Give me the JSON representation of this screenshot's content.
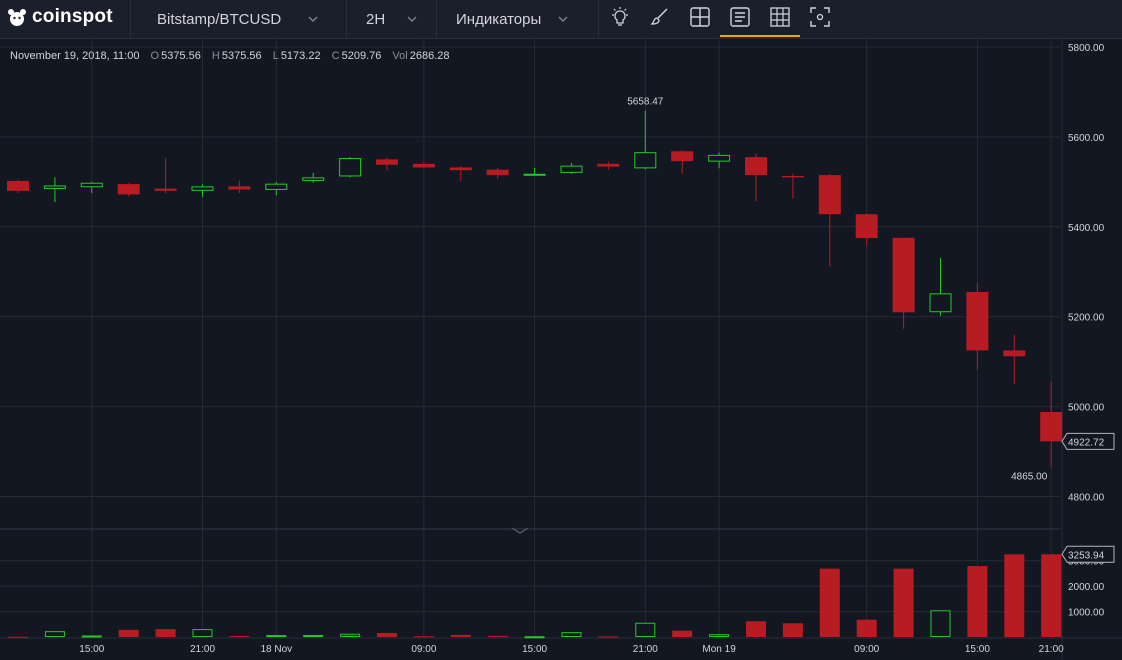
{
  "header": {
    "brand": "coinspot",
    "symbol": "Bitstamp/BTCUSD",
    "interval": "2H",
    "indicators": "Индикаторы",
    "icons": [
      "lightbulb-icon",
      "brush-icon",
      "layout-icon",
      "bars-style-icon",
      "grid-icon",
      "fullscreen-icon"
    ]
  },
  "legend": {
    "date": "November 19, 2018, 11:00",
    "o_label": "O",
    "o": "5375.56",
    "h_label": "H",
    "h": "5375.56",
    "l_label": "L",
    "l": "5173.22",
    "c_label": "C",
    "c": "5209.76",
    "vol_label": "Vol",
    "vol": "2686.28"
  },
  "colors": {
    "background": "#131722",
    "up": "#26c826",
    "down": "#b71c22",
    "grid": "#262a35",
    "accent": "#f7a600"
  },
  "chart_data": {
    "type": "candlestick",
    "price_ticks": [
      "5800.00",
      "5600.00",
      "5400.00",
      "5200.00",
      "5000.00",
      "4800.00"
    ],
    "price_ylim": [
      4730,
      5820
    ],
    "volume_ticks": [
      "3000.00",
      "2000.00",
      "1000.00"
    ],
    "volume_ylim": [
      0,
      3500
    ],
    "time_labels": [
      {
        "label": "15:00",
        "index": 2
      },
      {
        "label": "21:00",
        "index": 5
      },
      {
        "label": "18 Nov",
        "index": 7
      },
      {
        "label": "09:00",
        "index": 11
      },
      {
        "label": "15:00",
        "index": 14
      },
      {
        "label": "21:00",
        "index": 17
      },
      {
        "label": "Mon 19",
        "index": 19
      },
      {
        "label": "09:00",
        "index": 23
      },
      {
        "label": "15:00",
        "index": 26
      },
      {
        "label": "21:00",
        "index": 28
      }
    ],
    "candles": [
      {
        "o": 5502,
        "h": 5505,
        "l": 5475,
        "c": 5480,
        "v": 10
      },
      {
        "o": 5484,
        "h": 5510,
        "l": 5455,
        "c": 5492,
        "v": 230
      },
      {
        "o": 5488,
        "h": 5500,
        "l": 5475,
        "c": 5498,
        "v": 60
      },
      {
        "o": 5495,
        "h": 5497,
        "l": 5468,
        "c": 5472,
        "v": 280
      },
      {
        "o": 5485,
        "h": 5553,
        "l": 5475,
        "c": 5480,
        "v": 310
      },
      {
        "o": 5480,
        "h": 5495,
        "l": 5466,
        "c": 5490,
        "v": 310
      },
      {
        "o": 5490,
        "h": 5503,
        "l": 5475,
        "c": 5483,
        "v": 40
      },
      {
        "o": 5482,
        "h": 5500,
        "l": 5470,
        "c": 5496,
        "v": 75
      },
      {
        "o": 5502,
        "h": 5520,
        "l": 5498,
        "c": 5510,
        "v": 80
      },
      {
        "o": 5512,
        "h": 5555,
        "l": 5510,
        "c": 5553,
        "v": 130
      },
      {
        "o": 5550,
        "h": 5553,
        "l": 5525,
        "c": 5538,
        "v": 160
      },
      {
        "o": 5540,
        "h": 5545,
        "l": 5530,
        "c": 5532,
        "v": 30
      },
      {
        "o": 5532,
        "h": 5535,
        "l": 5502,
        "c": 5526,
        "v": 80
      },
      {
        "o": 5527,
        "h": 5531,
        "l": 5506,
        "c": 5515,
        "v": 40
      },
      {
        "o": 5515,
        "h": 5531,
        "l": 5514,
        "c": 5518,
        "v": 30
      },
      {
        "o": 5520,
        "h": 5542,
        "l": 5518,
        "c": 5536,
        "v": 190
      },
      {
        "o": 5540,
        "h": 5545,
        "l": 5527,
        "c": 5534,
        "v": 20
      },
      {
        "o": 5530,
        "h": 5658.47,
        "l": 5528,
        "c": 5566,
        "v": 560
      },
      {
        "o": 5568,
        "h": 5570,
        "l": 5518,
        "c": 5546,
        "v": 250
      },
      {
        "o": 5545,
        "h": 5565,
        "l": 5530,
        "c": 5560,
        "v": 110
      },
      {
        "o": 5555,
        "h": 5563,
        "l": 5457,
        "c": 5515,
        "v": 620
      },
      {
        "o": 5513,
        "h": 5518,
        "l": 5463,
        "c": 5510,
        "v": 540
      },
      {
        "o": 5515,
        "h": 5518,
        "l": 5312,
        "c": 5428,
        "v": 2686.28
      },
      {
        "o": 5428,
        "h": 5430,
        "l": 5358,
        "c": 5375,
        "v": 680
      },
      {
        "o": 5375.56,
        "h": 5375.56,
        "l": 5173.22,
        "c": 5209.76,
        "v": 2686.28
      },
      {
        "o": 5210,
        "h": 5330,
        "l": 5202,
        "c": 5252,
        "v": 1050
      },
      {
        "o": 5255,
        "h": 5275,
        "l": 5082,
        "c": 5125,
        "v": 2790
      },
      {
        "o": 5125,
        "h": 5160,
        "l": 5050,
        "c": 5112,
        "v": 3250
      },
      {
        "o": 4988,
        "h": 5056,
        "l": 4865,
        "c": 4922.72,
        "v": 3253.94
      }
    ],
    "annotations": {
      "high": "5658.47",
      "low": "4865.00"
    },
    "last_price": "4922.72",
    "last_volume": "3253.94"
  }
}
